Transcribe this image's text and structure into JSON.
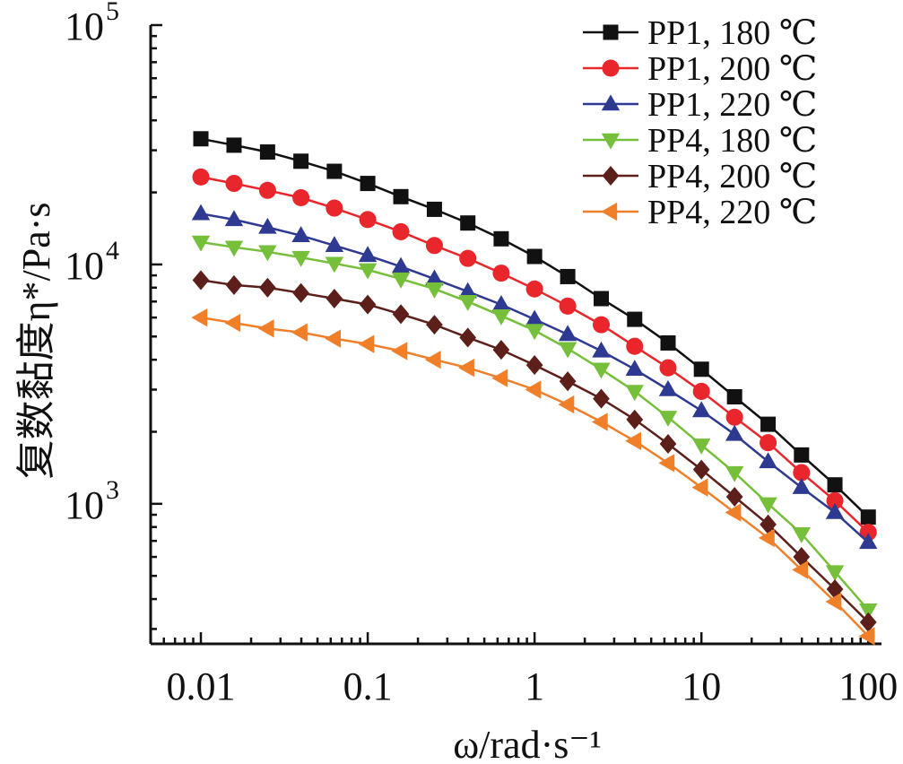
{
  "chart_data": {
    "type": "line",
    "title": "",
    "xlabel": "ω/rad·s⁻¹",
    "ylabel": "复数黏度η*/Pa·s",
    "xscale": "log",
    "yscale": "log",
    "xlim": [
      0.005,
      120
    ],
    "ylim": [
      260,
      100000
    ],
    "x_ticks": [
      {
        "value": 0.01,
        "label": "0.01"
      },
      {
        "value": 0.1,
        "label": "0.1"
      },
      {
        "value": 1,
        "label": "1"
      },
      {
        "value": 10,
        "label": "10"
      },
      {
        "value": 100,
        "label": "100"
      }
    ],
    "y_ticks": [
      {
        "value": 1000,
        "base": "10",
        "exp": "3"
      },
      {
        "value": 10000,
        "base": "10",
        "exp": "4"
      },
      {
        "value": 100000,
        "base": "10",
        "exp": "5"
      }
    ],
    "grid": false,
    "legend_position": "top-right",
    "x": [
      0.01,
      0.0158,
      0.0251,
      0.0398,
      0.0631,
      0.1,
      0.158,
      0.251,
      0.398,
      0.631,
      1,
      1.58,
      2.51,
      3.98,
      6.31,
      10,
      15.8,
      25.1,
      39.8,
      63.1,
      100
    ],
    "series": [
      {
        "name": "PP1, 180 ℃",
        "marker": "square",
        "color": "#111111",
        "values": [
          33500,
          31500,
          29500,
          27000,
          24500,
          21800,
          19200,
          17000,
          14900,
          12800,
          10800,
          8900,
          7200,
          5900,
          4700,
          3650,
          2800,
          2150,
          1600,
          1200,
          880
        ]
      },
      {
        "name": "PP1, 200 ℃",
        "marker": "circle",
        "color": "#e8262b",
        "values": [
          23200,
          21800,
          20400,
          19000,
          17200,
          15400,
          13700,
          12000,
          10600,
          9200,
          7900,
          6700,
          5600,
          4550,
          3700,
          2950,
          2300,
          1800,
          1350,
          1030,
          760
        ]
      },
      {
        "name": "PP1, 220 ℃",
        "marker": "triangle-up",
        "color": "#2e3a91",
        "values": [
          16300,
          15400,
          14300,
          13200,
          12000,
          10900,
          9800,
          8700,
          7700,
          6800,
          5900,
          5100,
          4350,
          3650,
          3000,
          2450,
          1950,
          1500,
          1170,
          920,
          690
        ]
      },
      {
        "name": "PP4, 180 ℃",
        "marker": "triangle-down",
        "color": "#76bf3a",
        "values": [
          12400,
          11800,
          11300,
          10700,
          10100,
          9500,
          8700,
          7900,
          7000,
          6100,
          5300,
          4450,
          3650,
          2950,
          2300,
          1760,
          1350,
          1000,
          750,
          520,
          360
        ]
      },
      {
        "name": "PP4, 200 ℃",
        "marker": "diamond",
        "color": "#5c1f1a",
        "values": [
          8600,
          8200,
          8000,
          7600,
          7200,
          6800,
          6200,
          5600,
          4950,
          4400,
          3800,
          3250,
          2750,
          2250,
          1780,
          1390,
          1070,
          820,
          600,
          440,
          320
        ]
      },
      {
        "name": "PP4, 220 ℃",
        "marker": "triangle-left",
        "color": "#f07f2a",
        "values": [
          6000,
          5700,
          5400,
          5200,
          4900,
          4650,
          4350,
          4000,
          3700,
          3350,
          3000,
          2600,
          2200,
          1830,
          1480,
          1170,
          920,
          720,
          530,
          390,
          280
        ]
      }
    ]
  }
}
